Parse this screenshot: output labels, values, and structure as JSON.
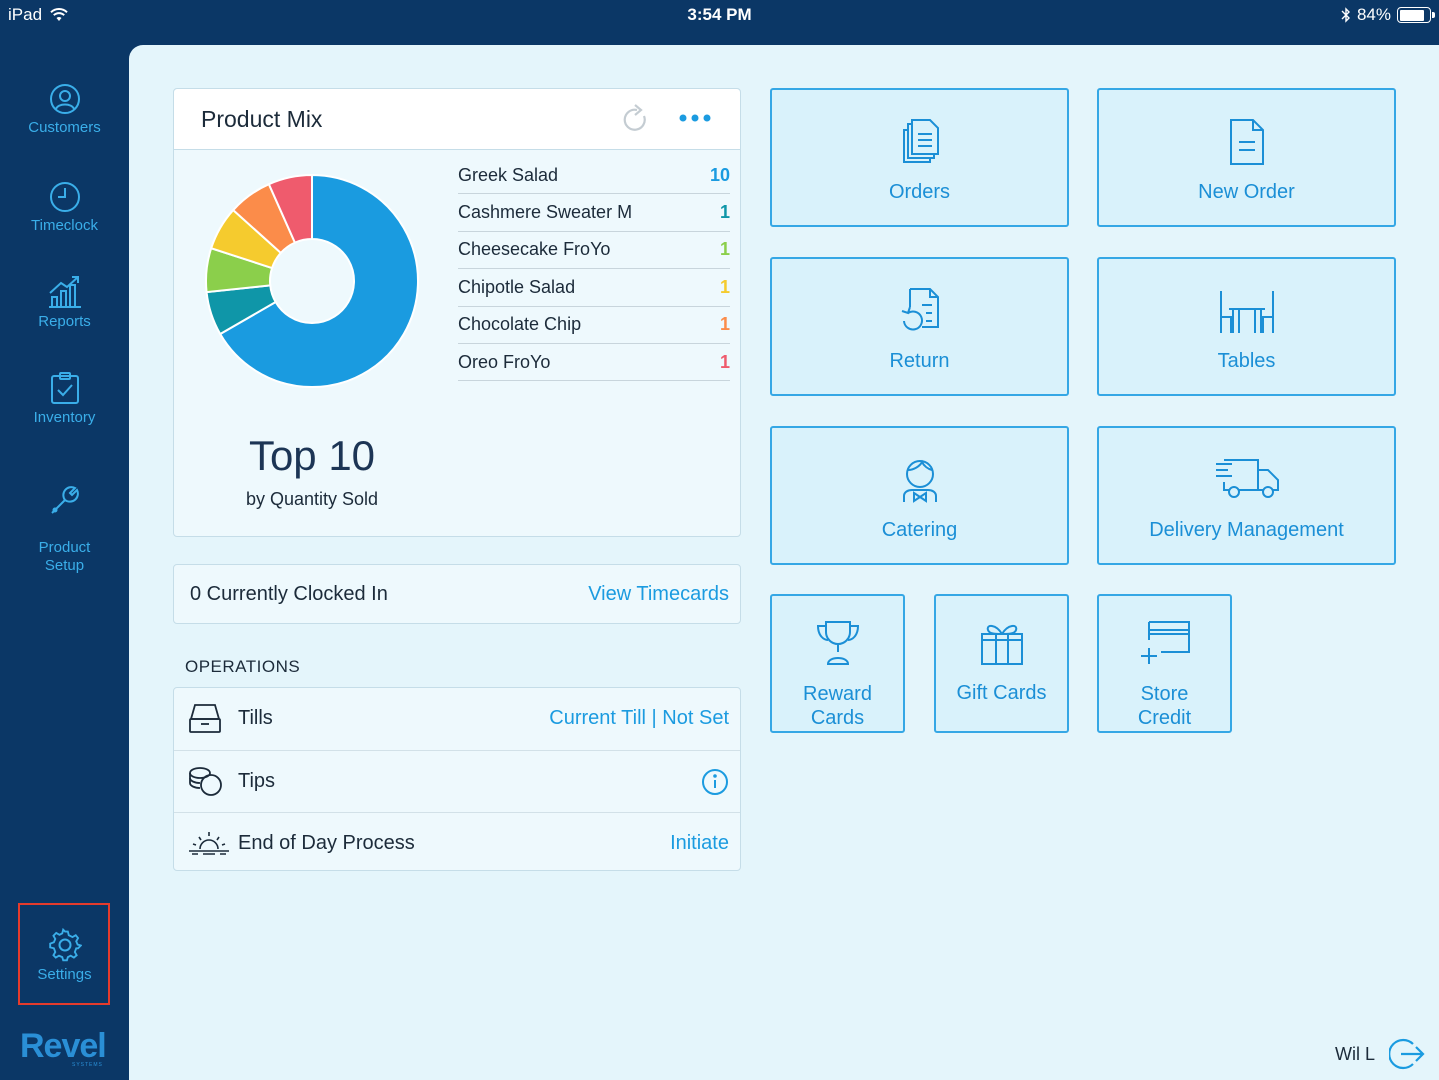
{
  "status_bar": {
    "device": "iPad",
    "time": "3:54 PM",
    "battery_percent": "84%",
    "battery_level": 0.84
  },
  "sidebar": {
    "items": [
      {
        "label": "Customers",
        "icon": "user-circle-icon"
      },
      {
        "label": "Timeclock",
        "icon": "clock-icon"
      },
      {
        "label": "Reports",
        "icon": "bar-chart-icon"
      },
      {
        "label": "Inventory",
        "icon": "clipboard-check-icon"
      },
      {
        "label": "Product\nSetup",
        "icon": "wrench-icon"
      }
    ],
    "settings_label": "Settings",
    "logo_text": "Revel",
    "logo_sub": "SYSTEMS"
  },
  "product_mix": {
    "title": "Product Mix",
    "headline": "Top 10",
    "subheadline": "by Quantity Sold",
    "items": [
      {
        "name": "Greek Salad",
        "qty": "10",
        "color": "#1a9be0"
      },
      {
        "name": "Cashmere Sweater M",
        "qty": "1",
        "color": "#0f96a8"
      },
      {
        "name": "Cheesecake FroYo",
        "qty": "1",
        "color": "#8bcf4b"
      },
      {
        "name": "Chipotle Salad",
        "qty": "1",
        "color": "#f5cb2e"
      },
      {
        "name": "Chocolate Chip",
        "qty": "1",
        "color": "#fb8c4a"
      },
      {
        "name": "Oreo FroYo",
        "qty": "1",
        "color": "#ef5b6d"
      }
    ]
  },
  "clock": {
    "label": "0 Currently Clocked In",
    "link": "View Timecards"
  },
  "operations": {
    "title": "OPERATIONS",
    "rows": [
      {
        "label": "Tills",
        "value": "Current Till | Not Set",
        "icon": "till-drawer-icon"
      },
      {
        "label": "Tips",
        "value": "",
        "icon": "coins-icon"
      },
      {
        "label": "End of Day Process",
        "value": "Initiate",
        "icon": "sunset-icon"
      }
    ]
  },
  "tiles": {
    "orders": "Orders",
    "new_order": "New Order",
    "return": "Return",
    "tables": "Tables",
    "catering": "Catering",
    "delivery": "Delivery Management",
    "reward_cards_1": "Reward",
    "reward_cards_2": "Cards",
    "gift_cards": "Gift Cards",
    "store_credit_1": "Store",
    "store_credit_2": "Credit"
  },
  "user": {
    "name": "Wil L"
  },
  "colors": {
    "sidebar_bg": "#0b3766",
    "accent": "#1b9be0",
    "highlight": "#e53b2c"
  }
}
